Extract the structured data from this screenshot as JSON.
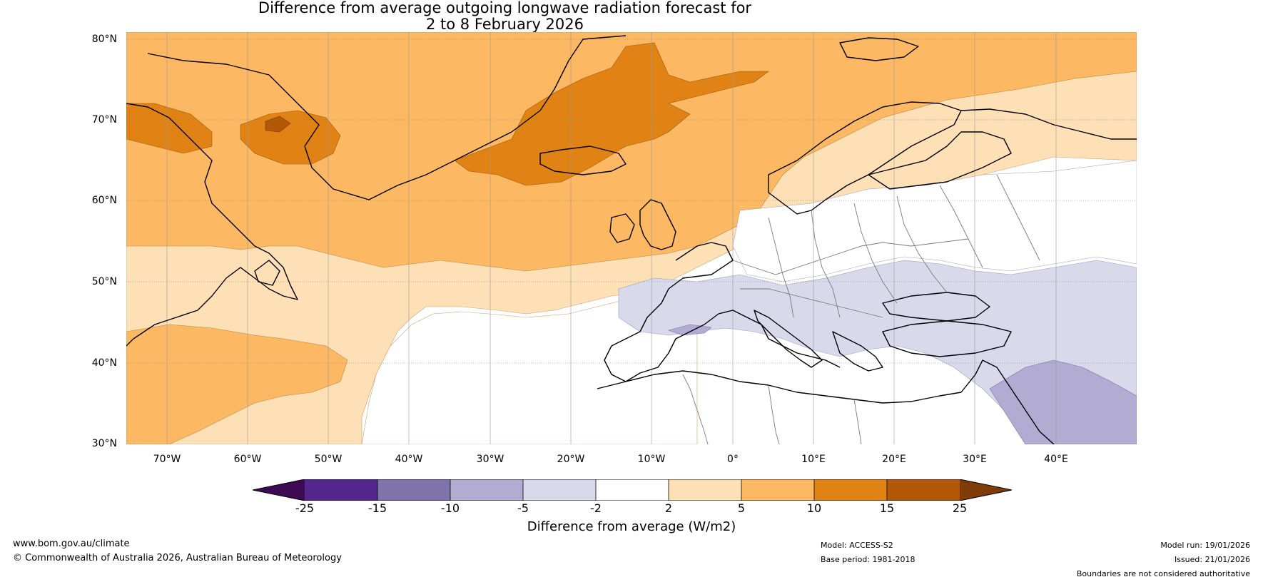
{
  "title": {
    "line1": "Difference from average outgoing longwave radiation forecast for",
    "line2": "2 to 8 February 2026"
  },
  "map": {
    "lat_labels": [
      "80°N",
      "70°N",
      "60°N",
      "50°N",
      "40°N",
      "30°N"
    ],
    "lon_labels": [
      "70°W",
      "60°W",
      "50°W",
      "40°W",
      "30°W",
      "20°W",
      "10°W",
      "0°",
      "10°E",
      "20°E",
      "30°E",
      "40°E"
    ],
    "extent": {
      "lon_min": -75,
      "lon_max": 50,
      "lat_min": 30,
      "lat_max": 81
    }
  },
  "legend": {
    "ticks": [
      "-25",
      "-15",
      "-10",
      "-5",
      "-2",
      "2",
      "5",
      "10",
      "15",
      "25"
    ],
    "colors": [
      "#3d0a53",
      "#54278f",
      "#8073ac",
      "#b2abd2",
      "#d8daeb",
      "#ffffff",
      "#fee0b6",
      "#fdb863",
      "#e08214",
      "#b35806",
      "#7f3b08"
    ],
    "label": "Difference from average (W/m2)"
  },
  "footer": {
    "url": "www.bom.gov.au/climate",
    "copyright": "© Commonwealth of Australia 2026, Australian Bureau of Meteorology",
    "model": "Model: ACCESS-S2",
    "base_period": "Base period: 1981-2018",
    "model_run": "Model run: 19/01/2026",
    "issued": "Issued: 21/01/2026",
    "disclaimer": "Boundaries are not considered authoritative"
  }
}
